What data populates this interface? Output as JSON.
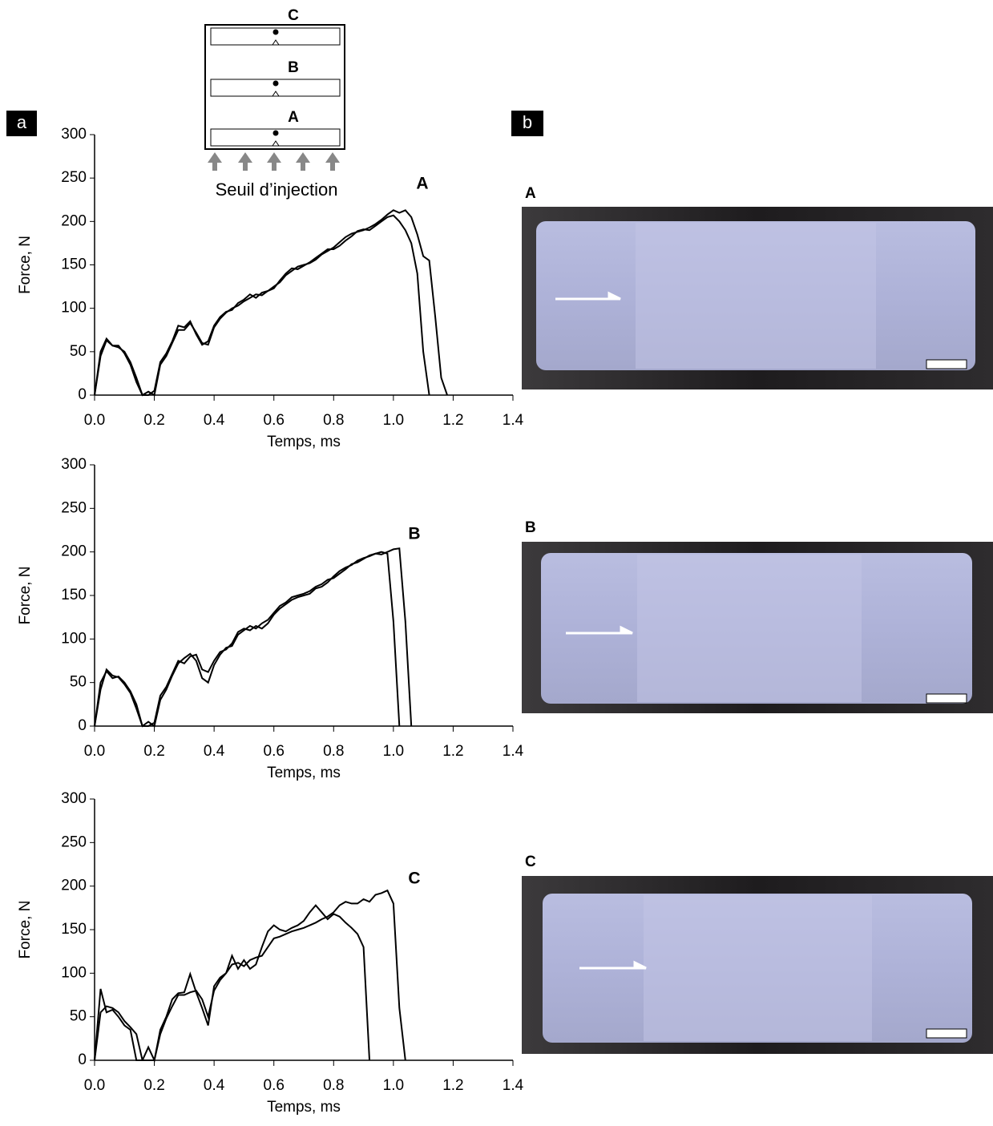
{
  "panel_labels": [
    "a",
    "b"
  ],
  "schematic": {
    "labels": [
      "C",
      "B",
      "A"
    ],
    "caption": "Seuil d’injection"
  },
  "photos": {
    "labels": [
      "A",
      "B",
      "C"
    ]
  },
  "chart_data": [
    {
      "type": "line",
      "annotation": "A",
      "xlabel": "Temps, ms",
      "ylabel": "Force, N",
      "xlim": [
        0,
        1.4
      ],
      "ylim": [
        0,
        300
      ],
      "xticks": [
        {
          "value": 0,
          "label": "0.0"
        },
        0.2,
        0.4,
        0.6,
        0.8,
        {
          "value": 1,
          "label": "1.0"
        },
        1.2,
        1.4
      ],
      "yticks": [
        0,
        50,
        100,
        150,
        200,
        250,
        300
      ],
      "x": [
        0,
        0.02,
        0.04,
        0.06,
        0.08,
        0.1,
        0.12,
        0.14,
        0.16,
        0.18,
        0.2,
        0.22,
        0.24,
        0.26,
        0.28,
        0.3,
        0.32,
        0.34,
        0.36,
        0.38,
        0.4,
        0.42,
        0.44,
        0.46,
        0.48,
        0.5,
        0.52,
        0.54,
        0.56,
        0.58,
        0.6,
        0.62,
        0.64,
        0.66,
        0.68,
        0.7,
        0.72,
        0.74,
        0.76,
        0.78,
        0.8,
        0.82,
        0.84,
        0.86,
        0.88,
        0.9,
        0.92,
        0.94,
        0.96,
        0.98,
        1,
        1.02,
        1.04,
        1.06,
        1.08,
        1.1,
        1.12,
        1.14,
        1.16,
        1.18
      ],
      "series": [
        {
          "color": "#000000",
          "values": [
            0,
            45,
            63,
            57,
            57,
            48,
            35,
            15,
            0,
            0,
            5,
            38,
            48,
            62,
            80,
            78,
            85,
            70,
            58,
            62,
            80,
            90,
            96,
            98,
            106,
            110,
            116,
            112,
            118,
            120,
            123,
            132,
            140,
            146,
            145,
            149,
            153,
            158,
            163,
            168,
            168,
            172,
            178,
            183,
            189,
            191,
            190,
            195,
            200,
            205,
            207,
            200,
            190,
            175,
            140,
            50,
            0,
            null,
            null,
            null
          ]
        },
        {
          "color": "#000000",
          "values": [
            0,
            50,
            65,
            57,
            55,
            50,
            38,
            20,
            0,
            4,
            0,
            35,
            45,
            60,
            75,
            75,
            83,
            72,
            60,
            58,
            78,
            88,
            95,
            100,
            103,
            108,
            112,
            116,
            115,
            120,
            125,
            130,
            138,
            143,
            148,
            150,
            152,
            156,
            162,
            166,
            170,
            176,
            182,
            186,
            188,
            190,
            193,
            197,
            202,
            208,
            213,
            210,
            213,
            205,
            185,
            160,
            155,
            90,
            20,
            0
          ]
        }
      ]
    },
    {
      "type": "line",
      "annotation": "B",
      "xlabel": "Temps, ms",
      "ylabel": "Force, N",
      "xlim": [
        0,
        1.4
      ],
      "ylim": [
        0,
        300
      ],
      "xticks": [
        {
          "value": 0,
          "label": "0.0"
        },
        0.2,
        0.4,
        0.6,
        0.8,
        {
          "value": 1,
          "label": "1.0"
        },
        1.2,
        1.4
      ],
      "yticks": [
        0,
        50,
        100,
        150,
        200,
        250,
        300
      ],
      "x": [
        0,
        0.02,
        0.04,
        0.06,
        0.08,
        0.1,
        0.12,
        0.14,
        0.16,
        0.18,
        0.2,
        0.22,
        0.24,
        0.26,
        0.28,
        0.3,
        0.32,
        0.34,
        0.36,
        0.38,
        0.4,
        0.42,
        0.44,
        0.46,
        0.48,
        0.5,
        0.52,
        0.54,
        0.56,
        0.58,
        0.6,
        0.62,
        0.64,
        0.66,
        0.68,
        0.7,
        0.72,
        0.74,
        0.76,
        0.78,
        0.8,
        0.82,
        0.84,
        0.86,
        0.88,
        0.9,
        0.92,
        0.94,
        0.96,
        0.98,
        1,
        1.02,
        1.04,
        1.06
      ],
      "series": [
        {
          "color": "#000000",
          "values": [
            0,
            42,
            65,
            58,
            56,
            48,
            38,
            20,
            0,
            0,
            4,
            35,
            45,
            60,
            75,
            72,
            80,
            82,
            65,
            62,
            75,
            85,
            88,
            95,
            108,
            112,
            110,
            115,
            112,
            118,
            128,
            135,
            140,
            145,
            148,
            150,
            152,
            158,
            160,
            165,
            172,
            178,
            182,
            185,
            190,
            193,
            195,
            198,
            200,
            198,
            120,
            0,
            null,
            null
          ]
        },
        {
          "color": "#000000",
          "values": [
            0,
            50,
            63,
            55,
            57,
            50,
            40,
            25,
            0,
            5,
            0,
            30,
            42,
            58,
            72,
            78,
            83,
            75,
            55,
            50,
            70,
            82,
            90,
            92,
            105,
            110,
            115,
            112,
            118,
            122,
            130,
            138,
            142,
            148,
            150,
            152,
            155,
            160,
            163,
            168,
            170,
            175,
            180,
            186,
            188,
            192,
            196,
            198,
            197,
            200,
            203,
            204,
            120,
            0
          ]
        }
      ]
    },
    {
      "type": "line",
      "annotation": "C",
      "xlabel": "Temps, ms",
      "ylabel": "Force, N",
      "xlim": [
        0,
        1.4
      ],
      "ylim": [
        0,
        300
      ],
      "xticks": [
        {
          "value": 0,
          "label": "0.0"
        },
        0.2,
        0.4,
        0.6,
        0.8,
        {
          "value": 1,
          "label": "1.0"
        },
        1.2,
        1.4
      ],
      "yticks": [
        0,
        50,
        100,
        150,
        200,
        250,
        300
      ],
      "x": [
        0,
        0.02,
        0.04,
        0.06,
        0.08,
        0.1,
        0.12,
        0.14,
        0.16,
        0.18,
        0.2,
        0.22,
        0.24,
        0.26,
        0.28,
        0.3,
        0.32,
        0.34,
        0.36,
        0.38,
        0.4,
        0.42,
        0.44,
        0.46,
        0.48,
        0.5,
        0.52,
        0.54,
        0.56,
        0.58,
        0.6,
        0.62,
        0.64,
        0.66,
        0.68,
        0.7,
        0.72,
        0.74,
        0.76,
        0.78,
        0.8,
        0.82,
        0.84,
        0.86,
        0.88,
        0.9,
        0.92,
        0.94,
        0.96,
        0.98,
        1,
        1.02,
        1.04
      ],
      "series": [
        {
          "color": "#000000",
          "values": [
            0,
            82,
            55,
            58,
            50,
            40,
            35,
            0,
            0,
            15,
            0,
            35,
            50,
            70,
            77,
            78,
            99,
            78,
            60,
            40,
            85,
            95,
            100,
            120,
            105,
            115,
            105,
            110,
            130,
            148,
            155,
            150,
            148,
            152,
            155,
            160,
            170,
            178,
            170,
            162,
            168,
            165,
            158,
            152,
            145,
            130,
            0,
            null,
            null,
            null,
            null,
            null,
            null
          ]
        },
        {
          "color": "#000000",
          "values": [
            0,
            55,
            62,
            60,
            55,
            45,
            38,
            30,
            0,
            0,
            0,
            30,
            48,
            62,
            75,
            75,
            78,
            80,
            70,
            50,
            80,
            92,
            100,
            110,
            112,
            108,
            115,
            118,
            120,
            130,
            140,
            142,
            145,
            148,
            150,
            152,
            155,
            158,
            162,
            165,
            170,
            178,
            182,
            180,
            180,
            185,
            182,
            190,
            192,
            195,
            180,
            60,
            0
          ]
        }
      ]
    }
  ]
}
